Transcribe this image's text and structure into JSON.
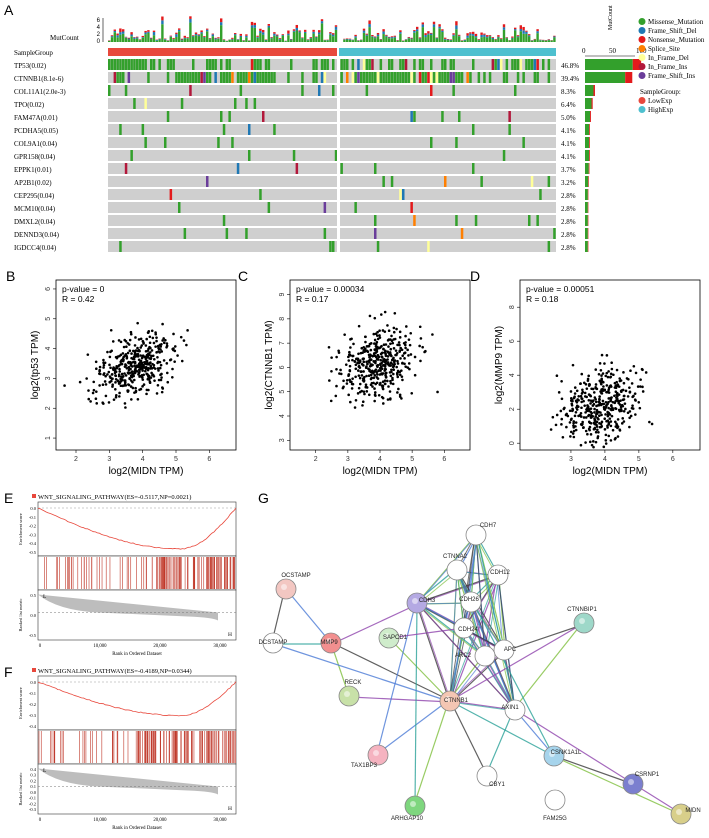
{
  "panels": {
    "A": "A",
    "B": "B",
    "C": "C",
    "D": "D",
    "E": "E",
    "F": "F",
    "G": "G"
  },
  "oncoplot": {
    "mutcount_label": "MutCount",
    "mutcount_ticks": [
      "6",
      "4",
      "2",
      "0"
    ],
    "samplegroup_label": "SampleGroup",
    "side_axis_label": "MutCount",
    "side_ticks": [
      "0",
      "50",
      "100"
    ],
    "genes": [
      {
        "name": "TP53(0.02)",
        "pct": "46.8%",
        "frac": 0.468
      },
      {
        "name": "CTNNB1(8.1e-6)",
        "pct": "39.4%",
        "frac": 0.394
      },
      {
        "name": "COL11A1(2.0e-3)",
        "pct": "8.3%",
        "frac": 0.083
      },
      {
        "name": "TPO(0.02)",
        "pct": "6.4%",
        "frac": 0.064
      },
      {
        "name": "FAM47A(0.01)",
        "pct": "5.0%",
        "frac": 0.05
      },
      {
        "name": "PCDHA5(0.05)",
        "pct": "4.1%",
        "frac": 0.041
      },
      {
        "name": "COL9A1(0.04)",
        "pct": "4.1%",
        "frac": 0.041
      },
      {
        "name": "GPR158(0.04)",
        "pct": "4.1%",
        "frac": 0.041
      },
      {
        "name": "EPPK1(0.01)",
        "pct": "3.7%",
        "frac": 0.037
      },
      {
        "name": "AP2B1(0.02)",
        "pct": "3.2%",
        "frac": 0.032
      },
      {
        "name": "CEP295(0.04)",
        "pct": "2.8%",
        "frac": 0.028
      },
      {
        "name": "MCM10(0.04)",
        "pct": "2.8%",
        "frac": 0.028
      },
      {
        "name": "DMXL2(0.04)",
        "pct": "2.8%",
        "frac": 0.028
      },
      {
        "name": "DENND3(0.04)",
        "pct": "2.8%",
        "frac": 0.028
      },
      {
        "name": "IGDCC4(0.04)",
        "pct": "2.8%",
        "frac": 0.028
      }
    ],
    "legend": [
      {
        "label": "Missense_Mutation",
        "color": "#33a02c"
      },
      {
        "label": "Frame_Shift_Del",
        "color": "#1f78b4"
      },
      {
        "label": "Nonsense_Mutation",
        "color": "#e31a1c"
      },
      {
        "label": "Splice_Site",
        "color": "#ff7f00"
      },
      {
        "label": "In_Frame_Del",
        "color": "#ffff99"
      },
      {
        "label": "In_Frame_Ins",
        "color": "#b2183b"
      },
      {
        "label": "Frame_Shift_Ins",
        "color": "#6a3d9a"
      }
    ],
    "samplegroup_title": "SampleGroup:",
    "groups": [
      {
        "label": "LowExp",
        "color": "#e8483c"
      },
      {
        "label": "HighExp",
        "color": "#4ec0cf"
      }
    ]
  },
  "scatter_B": {
    "stats": [
      "p-value = 0",
      "R = 0.42"
    ],
    "xlabel": "log2(MIDN TPM)",
    "ylabel": "log2(tp53 TPM)",
    "xticks": [
      "2",
      "3",
      "4",
      "5",
      "6"
    ],
    "yticks": [
      "1",
      "2",
      "3",
      "4",
      "5",
      "6"
    ]
  },
  "scatter_C": {
    "stats": [
      "p-value = 0.00034",
      "R = 0.17"
    ],
    "xlabel": "log2(MIDN TPM)",
    "ylabel": "log2(CTNNB1 TPM)",
    "xticks": [
      "2",
      "3",
      "4",
      "5",
      "6"
    ],
    "yticks": [
      "3",
      "4",
      "5",
      "6",
      "7",
      "8",
      "9"
    ]
  },
  "scatter_D": {
    "stats": [
      "p-value = 0.00051",
      "R = 0.18"
    ],
    "xlabel": "log2(MIDN TPM)",
    "ylabel": "log2(MMP9 TPM)",
    "xticks": [
      "3",
      "4",
      "5",
      "6"
    ],
    "yticks": [
      "0",
      "2",
      "4",
      "6",
      "8"
    ]
  },
  "gsea_E": {
    "title": "WNT_SIGNALING_PATHWAY(ES=-0.5117,NP=0.0021)",
    "ylabel_top": "Enrichment score",
    "ylabel_bottom": "Ranked list metric",
    "xlabel": "Rank in Ordered Dataset",
    "es_ticks": [
      "0.0",
      "-0.1",
      "-0.2",
      "-0.3",
      "-0.4",
      "-0.5"
    ],
    "metric_ticks": [
      "0.5",
      "0.0",
      "-0.5"
    ],
    "xticks": [
      "0",
      "10,000",
      "20,000",
      "30,000"
    ],
    "L": "L",
    "H": "H"
  },
  "gsea_F": {
    "title": "WNT_SIGNALING_PATHWAY(ES=-0.4189,NP=0.0344)",
    "ylabel_top": "Enrichment score",
    "ylabel_bottom": "Ranked list metric",
    "xlabel": "Rank in Ordered Dataset",
    "es_ticks": [
      "0.0",
      "-0.1",
      "-0.2",
      "-0.3",
      "-0.4"
    ],
    "metric_ticks": [
      "0.4",
      "0.3",
      "0.2",
      "0.1",
      "0.0",
      "-0.1",
      "-0.2",
      "-0.3"
    ],
    "xticks": [
      "0",
      "10,000",
      "20,000",
      "30,000"
    ],
    "L": "L",
    "H": "H"
  },
  "network": {
    "nodes": [
      {
        "id": "CDH7",
        "label": "CDH7"
      },
      {
        "id": "CTNNA2",
        "label": "CTNNA2"
      },
      {
        "id": "CDH12",
        "label": "CDH12"
      },
      {
        "id": "OCSTAMP",
        "label": "OCSTAMP"
      },
      {
        "id": "CDH3",
        "label": "CDH3"
      },
      {
        "id": "CDH26",
        "label": "CDH26"
      },
      {
        "id": "CDH24",
        "label": "CDH24"
      },
      {
        "id": "CTNNBIP1",
        "label": "CTNNBIP1"
      },
      {
        "id": "SAPCD1",
        "label": "SAPCD1"
      },
      {
        "id": "DCSTAMP",
        "label": "DCSTAMP"
      },
      {
        "id": "MMP9",
        "label": "MMP9"
      },
      {
        "id": "APC",
        "label": "APC"
      },
      {
        "id": "ARC2",
        "label": "ARC2"
      },
      {
        "id": "RECK",
        "label": "RECK"
      },
      {
        "id": "CTNNB1",
        "label": "CTNNB1"
      },
      {
        "id": "AXIN1",
        "label": "AXIN1"
      },
      {
        "id": "TAX1BP3",
        "label": "TAX1BP3"
      },
      {
        "id": "CSNK1A1L",
        "label": "CSNK1A1L"
      },
      {
        "id": "CSRNP1",
        "label": "CSRNP1"
      },
      {
        "id": "CBY1",
        "label": "CBY1"
      },
      {
        "id": "MIDN",
        "label": "MIDN"
      },
      {
        "id": "ARHGAP10",
        "label": "ARHGAP10"
      },
      {
        "id": "FAM25G",
        "label": "FAM25G"
      }
    ]
  }
}
